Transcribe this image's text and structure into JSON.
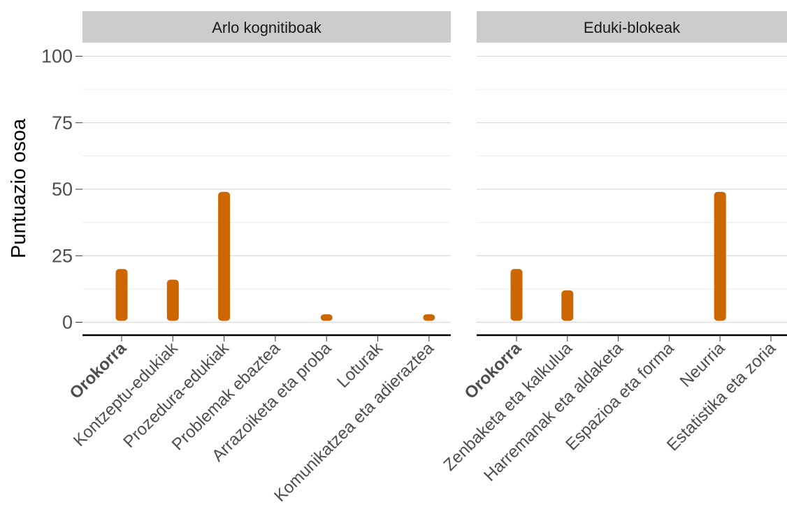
{
  "chart_data": [
    {
      "type": "bar",
      "panel_title": "Arlo kognitiboak",
      "ylabel": "Puntuazio osoa",
      "ylim": [
        0,
        100
      ],
      "yticks": [
        0,
        25,
        50,
        75,
        100
      ],
      "grid": true,
      "categories": [
        "Orokorra",
        "Kontzeptu-edukiak",
        "Prozedura-edukiak",
        "Problemak ebaztea",
        "Arrazoiketa eta proba",
        "Loturak",
        "Komunikatzea eta adieraztea"
      ],
      "bold_categories": [
        "Orokorra"
      ],
      "values": [
        20,
        16,
        49,
        0,
        3,
        0,
        3
      ]
    },
    {
      "type": "bar",
      "panel_title": "Eduki-blokeak",
      "ylim": [
        0,
        100
      ],
      "grid": true,
      "categories": [
        "Orokorra",
        "Zenbaketa eta kalkulua",
        "Harremanak eta aldaketa",
        "Espazioa eta forma",
        "Neurria",
        "Estatistika eta zoria"
      ],
      "bold_categories": [
        "Orokorra"
      ],
      "values": [
        20,
        12,
        0,
        0,
        49,
        0
      ]
    }
  ],
  "colors": {
    "bar": "#cc6600",
    "strip": "#cccccc",
    "grid_major": "#d9d9d9",
    "grid_minor": "#ebebeb",
    "axis_line": "#000000"
  }
}
